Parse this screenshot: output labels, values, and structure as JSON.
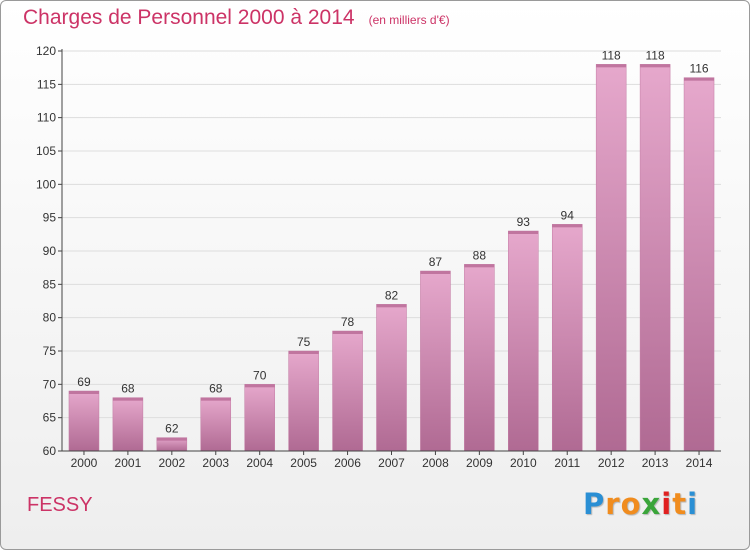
{
  "chart_data": {
    "type": "bar",
    "title": "Charges de Personnel 2000 à 2014",
    "subtitle": "(en milliers d'€)",
    "categories": [
      "2000",
      "2001",
      "2002",
      "2003",
      "2004",
      "2005",
      "2006",
      "2007",
      "2008",
      "2009",
      "2010",
      "2011",
      "2012",
      "2013",
      "2014"
    ],
    "values": [
      69,
      68,
      62,
      68,
      70,
      75,
      78,
      82,
      87,
      88,
      93,
      94,
      118,
      118,
      116
    ],
    "ylim": [
      60,
      120
    ],
    "yticks": [
      60,
      65,
      70,
      75,
      80,
      85,
      90,
      95,
      100,
      105,
      110,
      115,
      120
    ],
    "grid": true,
    "bar_color": "#d890b8"
  },
  "commune": "FESSY",
  "logo": {
    "letters": [
      "P",
      "r",
      "o",
      "x",
      "i",
      "t",
      "i"
    ],
    "colors": [
      "#2a8fd4",
      "#f08c1e",
      "#f08c1e",
      "#3aa53a",
      "#e02020",
      "#f08c1e",
      "#2a8fd4"
    ]
  },
  "colors": {
    "title": "#cc3366",
    "axis": "#444444",
    "grid": "#dddddd"
  }
}
